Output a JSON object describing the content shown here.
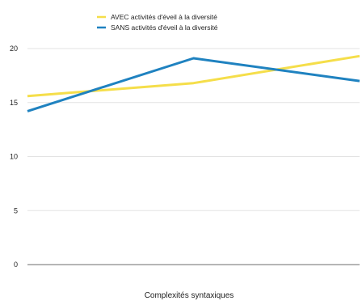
{
  "chart_data": {
    "type": "line",
    "title": "",
    "xlabel": "Complexités syntaxiques",
    "ylabel": "",
    "categories": [
      "",
      "",
      ""
    ],
    "ylim": [
      0,
      20
    ],
    "yticks": [
      0,
      5,
      10,
      15,
      20
    ],
    "grid": true,
    "legend_position": "top",
    "series": [
      {
        "name": "AVEC activités d'éveil à la diversité",
        "color": "#f5de4a",
        "values": [
          15.6,
          16.8,
          19.3
        ]
      },
      {
        "name": "SANS activités d'éveil à la diversité",
        "color": "#1f82c0",
        "values": [
          14.2,
          19.1,
          17.0
        ]
      }
    ]
  }
}
